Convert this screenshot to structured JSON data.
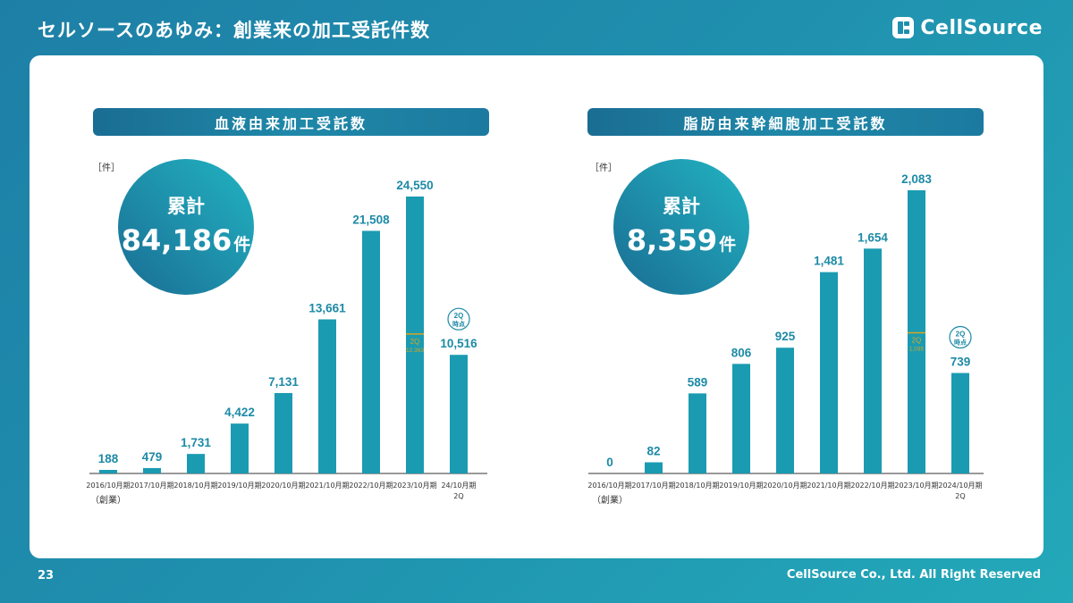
{
  "header": {
    "title": "セルソースのあゆみ：創業来の加工受託件数",
    "brand": "CellSource"
  },
  "footer": {
    "page_number": "23",
    "copyright": "CellSource Co., Ltd. All Right Reserved"
  },
  "colors": {
    "bar": "#1a9bb1",
    "axis": "#333333",
    "value_text": "#1d8aa6",
    "marker": "#d9a520",
    "circle_dark": "#1a6d93",
    "circle_light": "#22b3c2"
  },
  "chart_data": [
    {
      "type": "bar",
      "title": "血液由来加工受託数",
      "unit_label": "［件］",
      "total_label": "累計",
      "total_value": "84,186",
      "total_unit": "件",
      "categories": [
        "2016/10月期",
        "2017/10月期",
        "2018/10月期",
        "2019/10月期",
        "2020/10月期",
        "2021/10月期",
        "2022/10月期",
        "2023/10月期",
        "24/10月期"
      ],
      "category_sublabels": [
        "（創業）",
        "",
        "",
        "",
        "",
        "",
        "",
        "",
        "2Q"
      ],
      "values": [
        188,
        479,
        1731,
        4422,
        7131,
        13661,
        21508,
        24550,
        10516
      ],
      "value_labels": [
        "188",
        "479",
        "1,731",
        "4,422",
        "7,131",
        "13,661",
        "21,508",
        "24,550",
        "10,516"
      ],
      "marker": {
        "category_index": 7,
        "label": "2Q",
        "value": 12363,
        "value_label": "12,363"
      },
      "badge": {
        "category_index": 8,
        "line1": "2Q",
        "line2": "時点"
      },
      "ylim": [
        0,
        24550
      ]
    },
    {
      "type": "bar",
      "title": "脂肪由来幹細胞加工受託数",
      "unit_label": "［件］",
      "total_label": "累計",
      "total_value": "8,359",
      "total_unit": "件",
      "categories": [
        "2016/10月期",
        "2017/10月期",
        "2018/10月期",
        "2019/10月期",
        "2020/10月期",
        "2021/10月期",
        "2022/10月期",
        "2023/10月期",
        "2024/10月期"
      ],
      "category_sublabels": [
        "（創業）",
        "",
        "",
        "",
        "",
        "",
        "",
        "",
        "2Q"
      ],
      "values": [
        0,
        82,
        589,
        806,
        925,
        1481,
        1654,
        2083,
        739
      ],
      "value_labels": [
        "0",
        "82",
        "589",
        "806",
        "925",
        "1,481",
        "1,654",
        "2,083",
        "739"
      ],
      "marker": {
        "category_index": 7,
        "label": "2Q",
        "value": 1035,
        "value_label": "1,035"
      },
      "badge": {
        "category_index": 8,
        "line1": "2Q",
        "line2": "時点"
      },
      "ylim": [
        0,
        2083
      ]
    }
  ]
}
